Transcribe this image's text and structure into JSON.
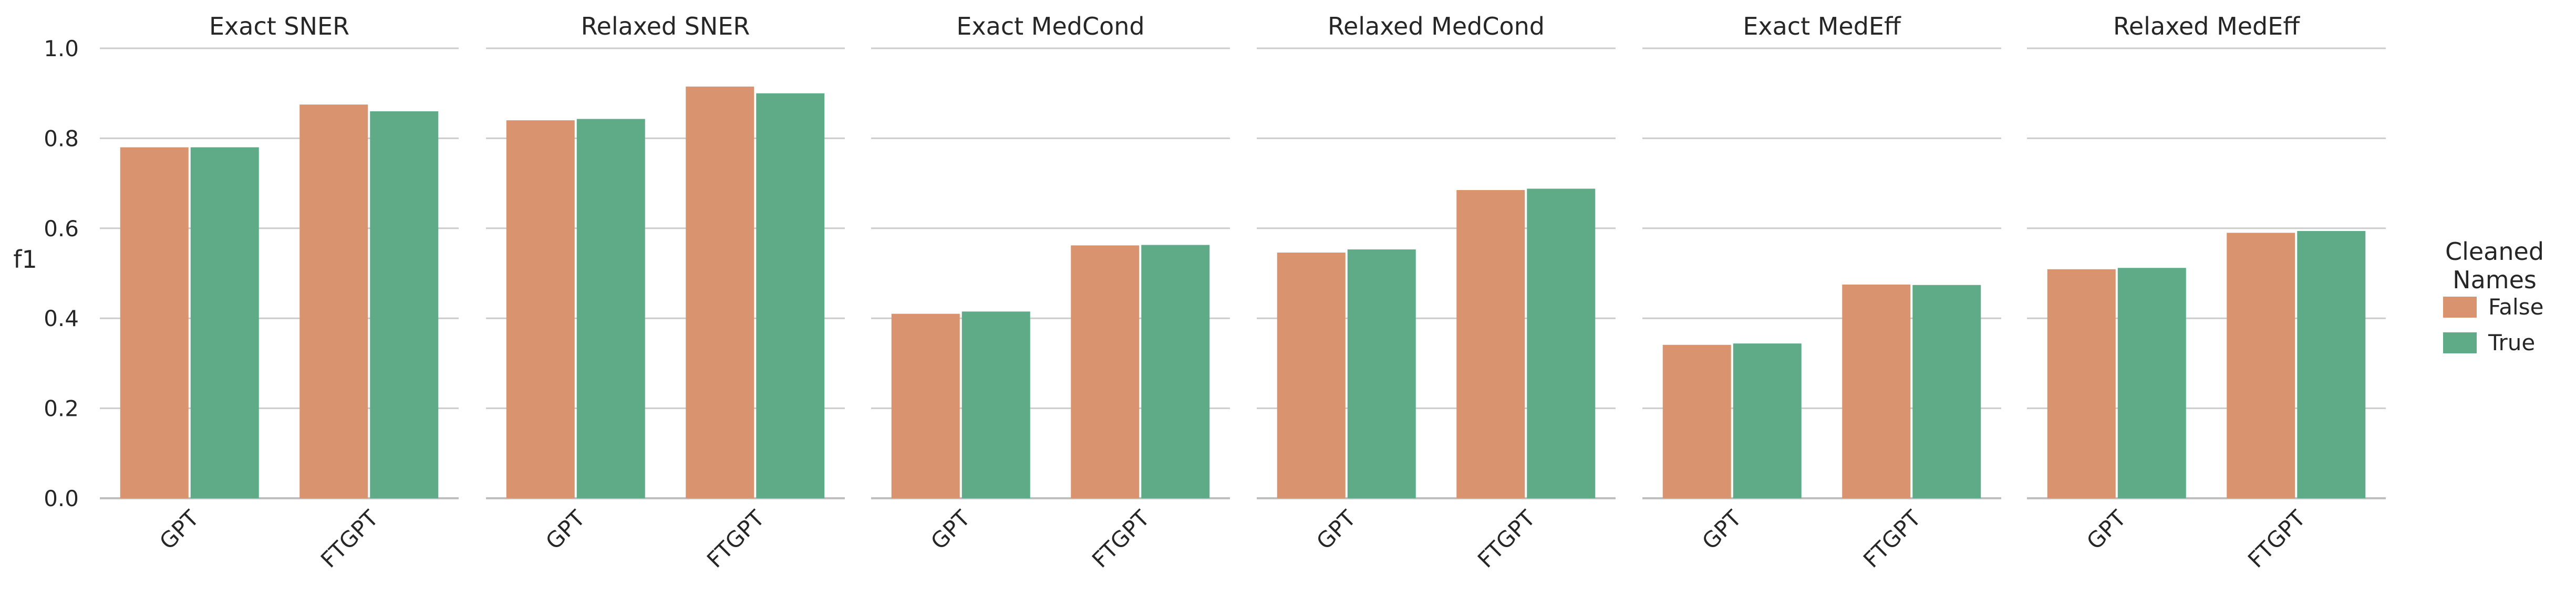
{
  "chart_data": {
    "type": "bar",
    "ylabel": "f1",
    "ylim": [
      0,
      1.0
    ],
    "yticks": [
      "0.0",
      "0.2",
      "0.4",
      "0.6",
      "0.8",
      "1.0"
    ],
    "categories": [
      "GPT",
      "FTGPT"
    ],
    "grid": "horizontal",
    "legend": {
      "title_lines": [
        "Cleaned",
        "Names"
      ],
      "placement": "right",
      "entries": [
        {
          "name": "False",
          "color": "#d9946f"
        },
        {
          "name": "True",
          "color": "#5fab88"
        }
      ]
    },
    "panels": [
      {
        "title": "Exact SNER",
        "series": [
          {
            "name": "False",
            "values": [
              0.78,
              0.875
            ]
          },
          {
            "name": "True",
            "values": [
              0.78,
              0.86
            ]
          }
        ]
      },
      {
        "title": "Relaxed SNER",
        "series": [
          {
            "name": "False",
            "values": [
              0.84,
              0.915
            ]
          },
          {
            "name": "True",
            "values": [
              0.843,
              0.9
            ]
          }
        ]
      },
      {
        "title": "Exact MedCond",
        "series": [
          {
            "name": "False",
            "values": [
              0.41,
              0.562
            ]
          },
          {
            "name": "True",
            "values": [
              0.415,
              0.563
            ]
          }
        ]
      },
      {
        "title": "Relaxed MedCond",
        "series": [
          {
            "name": "False",
            "values": [
              0.546,
              0.685
            ]
          },
          {
            "name": "True",
            "values": [
              0.553,
              0.688
            ]
          }
        ]
      },
      {
        "title": "Exact MedEff",
        "series": [
          {
            "name": "False",
            "values": [
              0.341,
              0.475
            ]
          },
          {
            "name": "True",
            "values": [
              0.344,
              0.474
            ]
          }
        ]
      },
      {
        "title": "Relaxed MedEff",
        "series": [
          {
            "name": "False",
            "values": [
              0.509,
              0.59
            ]
          },
          {
            "name": "True",
            "values": [
              0.512,
              0.594
            ]
          }
        ]
      }
    ]
  }
}
